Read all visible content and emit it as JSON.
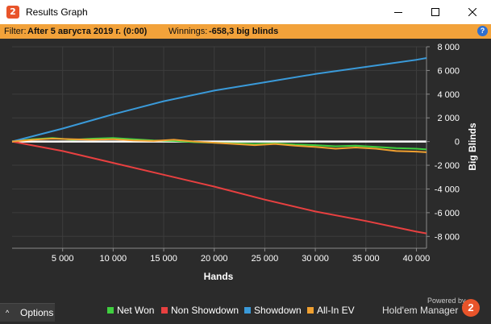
{
  "window": {
    "title": "Results Graph",
    "icon": "hm2-logo-icon",
    "logo_text": "2",
    "controls": [
      "minimize-icon",
      "maximize-icon",
      "close-icon"
    ]
  },
  "filter": {
    "label": "Filter:",
    "value": "After 5 августа 2019 г. (0:00)",
    "winnings_label": "Winnings:",
    "winnings_value": "-658,3 big blinds",
    "help": "?"
  },
  "chart_data": {
    "type": "line",
    "xlabel": "Hands",
    "ylabel": "Big Blinds",
    "xlim": [
      0,
      41000
    ],
    "ylim": [
      -9000,
      8000
    ],
    "x_ticks": [
      5000,
      10000,
      15000,
      20000,
      25000,
      30000,
      35000,
      40000
    ],
    "x_tick_labels": [
      "5 000",
      "10 000",
      "15 000",
      "20 000",
      "25 000",
      "30 000",
      "35 000",
      "40 000"
    ],
    "y_ticks": [
      8000,
      6000,
      4000,
      2000,
      0,
      -2000,
      -4000,
      -6000,
      -8000
    ],
    "y_tick_labels": [
      "8 000",
      "6 000",
      "4 000",
      "2 000",
      "0",
      "-2 000",
      "-4 000",
      "-6 000",
      "-8 000"
    ],
    "grid": true,
    "legend_position": "bottom",
    "series": [
      {
        "name": "Net Won",
        "color": "#3fcf3f",
        "x": [
          0,
          2000,
          4000,
          6000,
          8000,
          10000,
          12000,
          14000,
          16000,
          18000,
          20000,
          22000,
          24000,
          26000,
          28000,
          30000,
          32000,
          34000,
          36000,
          38000,
          40000,
          41000
        ],
        "y": [
          0,
          200,
          300,
          150,
          250,
          300,
          200,
          100,
          50,
          -50,
          -100,
          -150,
          -200,
          -150,
          -250,
          -300,
          -400,
          -350,
          -450,
          -550,
          -600,
          -660
        ]
      },
      {
        "name": "Non Showdown",
        "color": "#e84040",
        "x": [
          0,
          5000,
          10000,
          15000,
          20000,
          25000,
          30000,
          35000,
          40000,
          41000
        ],
        "y": [
          0,
          -800,
          -1800,
          -2800,
          -3800,
          -4900,
          -5900,
          -6700,
          -7600,
          -7750
        ]
      },
      {
        "name": "Showdown",
        "color": "#3a9ad9",
        "x": [
          0,
          5000,
          10000,
          15000,
          20000,
          25000,
          30000,
          35000,
          40000,
          41000
        ],
        "y": [
          0,
          1100,
          2300,
          3400,
          4300,
          5000,
          5700,
          6300,
          6900,
          7050
        ]
      },
      {
        "name": "All-In EV",
        "color": "#f0a030",
        "x": [
          0,
          2000,
          4000,
          6000,
          8000,
          10000,
          12000,
          14000,
          16000,
          18000,
          20000,
          22000,
          24000,
          26000,
          28000,
          30000,
          32000,
          34000,
          36000,
          38000,
          40000,
          41000
        ],
        "y": [
          0,
          150,
          250,
          200,
          150,
          200,
          100,
          50,
          150,
          0,
          -100,
          -200,
          -300,
          -200,
          -350,
          -450,
          -600,
          -500,
          -600,
          -800,
          -850,
          -900
        ]
      }
    ]
  },
  "bottom": {
    "options_label": "Options",
    "options_caret": "^",
    "legend": [
      {
        "label": "Net Won",
        "color": "#3fcf3f"
      },
      {
        "label": "Non Showdown",
        "color": "#e84040"
      },
      {
        "label": "Showdown",
        "color": "#3a9ad9"
      },
      {
        "label": "All-In EV",
        "color": "#f0a030"
      }
    ],
    "powered_by": "Powered by",
    "brand": "Hold'em Manager",
    "brand_logo": "2"
  }
}
